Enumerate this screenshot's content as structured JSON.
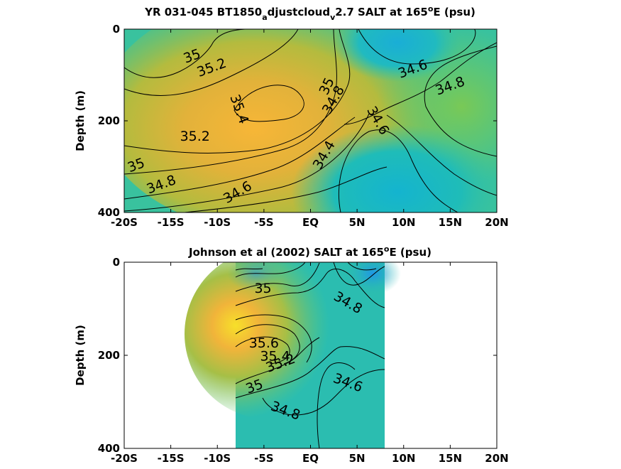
{
  "chart_data": [
    {
      "type": "heatmap",
      "title_main": "YR 031-045 BT1850",
      "title_sub1": "a",
      "title_mid": "djustcloud",
      "title_sub2": "v",
      "title_end": "2.7 SALT at 165",
      "title_sup": "o",
      "title_tail": "E (psu)",
      "ylabel": "Depth (m)",
      "x_ticks": [
        "-20S",
        "-15S",
        "-10S",
        "-5S",
        "EQ",
        "5N",
        "10N",
        "15N",
        "20N"
      ],
      "y_ticks": [
        "0",
        "200",
        "400"
      ],
      "xlim": [
        -20,
        20
      ],
      "ylim": [
        0,
        400
      ],
      "contour_labels": [
        {
          "text": "35",
          "x": -12.7,
          "y": 60,
          "rot": -20
        },
        {
          "text": "35.2",
          "x": -10.6,
          "y": 85,
          "rot": -20
        },
        {
          "text": "35.4",
          "x": -7.7,
          "y": 175,
          "rot": 70
        },
        {
          "text": "35.2",
          "x": -12.4,
          "y": 235,
          "rot": 0
        },
        {
          "text": "35",
          "x": -18.7,
          "y": 298,
          "rot": -20
        },
        {
          "text": "34.8",
          "x": -16.0,
          "y": 340,
          "rot": -20
        },
        {
          "text": "34.6",
          "x": -7.8,
          "y": 357,
          "rot": -30
        },
        {
          "text": "35",
          "x": 1.8,
          "y": 125,
          "rot": -65
        },
        {
          "text": "34.8",
          "x": 2.5,
          "y": 155,
          "rot": -60
        },
        {
          "text": "34.4",
          "x": 1.5,
          "y": 275,
          "rot": -60
        },
        {
          "text": "34.6",
          "x": 11.0,
          "y": 88,
          "rot": -20
        },
        {
          "text": "34.8",
          "x": 15.0,
          "y": 125,
          "rot": -20
        },
        {
          "text": "34.6",
          "x": 7.2,
          "y": 200,
          "rot": 60
        }
      ]
    },
    {
      "type": "heatmap",
      "title_main": "Johnson et al (2002) SALT at 165",
      "title_sup": "o",
      "title_tail": "E (psu)",
      "ylabel": "Depth (m)",
      "x_ticks": [
        "-20S",
        "-15S",
        "-10S",
        "-5S",
        "EQ",
        "5N",
        "10N",
        "15N",
        "20N"
      ],
      "y_ticks": [
        "0",
        "200",
        "400"
      ],
      "xlim": [
        -20,
        20
      ],
      "ylim": [
        0,
        400
      ],
      "data_xrange": [
        -8,
        8
      ],
      "contour_labels": [
        {
          "text": "35",
          "x": -5.1,
          "y": 57,
          "rot": 0
        },
        {
          "text": "34.8",
          "x": 4.0,
          "y": 88,
          "rot": 30
        },
        {
          "text": "35.6",
          "x": -5.0,
          "y": 175,
          "rot": 0
        },
        {
          "text": "35.4",
          "x": -3.8,
          "y": 203,
          "rot": 0
        },
        {
          "text": "35.2",
          "x": -3.2,
          "y": 218,
          "rot": -20
        },
        {
          "text": "34.6",
          "x": 4.0,
          "y": 260,
          "rot": 20
        },
        {
          "text": "35",
          "x": -6.0,
          "y": 268,
          "rot": -20
        },
        {
          "text": "34.8",
          "x": -2.7,
          "y": 320,
          "rot": 20
        }
      ]
    }
  ]
}
